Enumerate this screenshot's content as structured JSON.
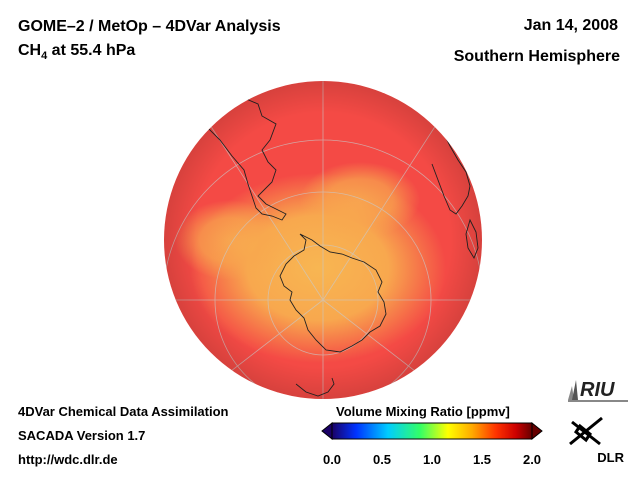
{
  "header": {
    "title": "GOME–2 / MetOp – 4DVar Analysis",
    "species_main": "CH",
    "species_sub": "4",
    "species_rest": " at 55.4 hPa",
    "date": "Jan 14, 2008",
    "region": "Southern Hemisphere"
  },
  "footer": {
    "line1": "4DVar Chemical Data Assimilation",
    "line2": "SACADA Version 1.7",
    "line3": "http://wdc.dlr.de"
  },
  "colorbar": {
    "title": "Volume Mixing Ratio [ppmv]",
    "ticks": [
      "0.0",
      "0.5",
      "1.0",
      "1.5",
      "2.0"
    ],
    "colors": [
      "#1a0066",
      "#0033ff",
      "#00ccff",
      "#33ff66",
      "#ffff00",
      "#ffaa00",
      "#ff3300",
      "#cc0000",
      "#660000"
    ]
  },
  "logos": {
    "riu": "RIU",
    "dlr": "DLR"
  },
  "map": {
    "projection": "orthographic south pole",
    "background_color": "#f44a45",
    "low_color": "#f9a64c"
  }
}
